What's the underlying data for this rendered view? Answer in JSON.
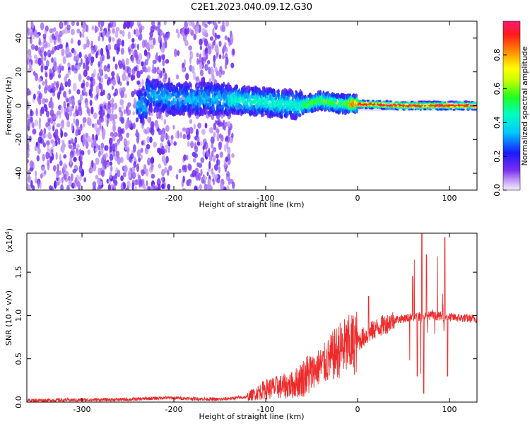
{
  "title": "C2E1.2023.040.09.12.G30",
  "chart_data": [
    {
      "type": "heatmap",
      "xlabel": "Height of straight line (km)",
      "ylabel": "Frequency (Hz)",
      "xlim": [
        -360,
        130
      ],
      "ylim": [
        -50,
        50
      ],
      "xticks": [
        -300,
        -200,
        -100,
        0,
        100
      ],
      "yticks": [
        -40,
        -20,
        0,
        20,
        40
      ],
      "colorbar": {
        "label": "Normalized spectral amplitude",
        "range": [
          0,
          1
        ],
        "ticks": [
          "0.0",
          "0.2",
          "0.4",
          "0.6",
          "0.8"
        ],
        "colormap": "rainbow-violet-to-red"
      },
      "ridge": {
        "description_free": true,
        "center_frequency": [
          {
            "x": -230,
            "y": 7
          },
          {
            "x": -200,
            "y": 4
          },
          {
            "x": -150,
            "y": 4
          },
          {
            "x": -100,
            "y": 2
          },
          {
            "x": -60,
            "y": 0
          },
          {
            "x": -40,
            "y": 3
          },
          {
            "x": -20,
            "y": 1
          },
          {
            "x": 0,
            "y": 1
          },
          {
            "x": 50,
            "y": 0
          },
          {
            "x": 90,
            "y": 0
          },
          {
            "x": 130,
            "y": 0
          }
        ]
      }
    },
    {
      "type": "line",
      "xlabel": "Height of straight line (km)",
      "ylabel": "SNR (10 * v/v)",
      "y_exponent_label": "(x10",
      "y_exponent_power": "4",
      "y_exponent_close": ")",
      "xlim": [
        -360,
        130
      ],
      "ylim": [
        0,
        1.95
      ],
      "xticks": [
        -300,
        -200,
        -100,
        0,
        100
      ],
      "yticks": [
        "0.0",
        "0.5",
        "1.0",
        "1.5"
      ],
      "yticks_values": [
        0,
        0.5,
        1.0,
        1.5
      ],
      "color": "#ee2b2b",
      "trend": [
        {
          "x": -360,
          "y": 0.02
        },
        {
          "x": -250,
          "y": 0.03
        },
        {
          "x": -210,
          "y": 0.05
        },
        {
          "x": -150,
          "y": 0.03
        },
        {
          "x": -120,
          "y": 0.06
        },
        {
          "x": -100,
          "y": 0.15
        },
        {
          "x": -70,
          "y": 0.2
        },
        {
          "x": -50,
          "y": 0.35
        },
        {
          "x": -35,
          "y": 0.45
        },
        {
          "x": -20,
          "y": 0.6
        },
        {
          "x": 0,
          "y": 0.7
        },
        {
          "x": 20,
          "y": 0.85
        },
        {
          "x": 40,
          "y": 0.95
        },
        {
          "x": 60,
          "y": 0.98
        },
        {
          "x": 80,
          "y": 1.0
        },
        {
          "x": 100,
          "y": 0.98
        },
        {
          "x": 130,
          "y": 0.96
        }
      ],
      "spikes": [
        {
          "x": 12,
          "y": 1.22
        },
        {
          "x": 70,
          "y": 1.95
        },
        {
          "x": 72,
          "y": 0.1
        },
        {
          "x": 75,
          "y": 1.7
        },
        {
          "x": 65,
          "y": 0.3
        },
        {
          "x": 95,
          "y": 1.9
        },
        {
          "x": 98,
          "y": 0.3
        },
        {
          "x": 60,
          "y": 1.45
        }
      ]
    }
  ]
}
